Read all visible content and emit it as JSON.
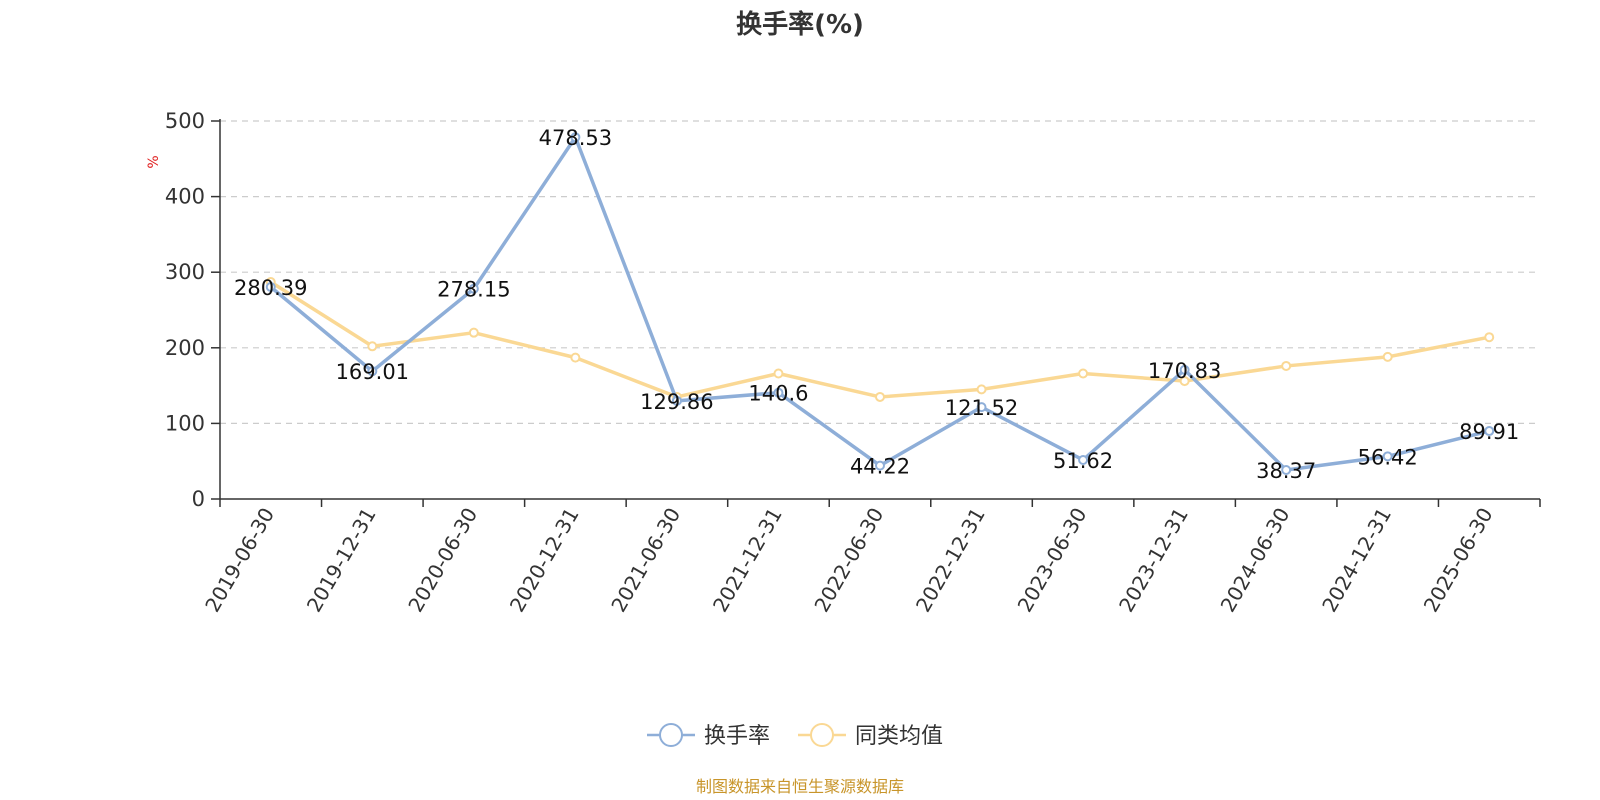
{
  "chart_data": {
    "type": "line",
    "title": "换手率(%)",
    "ylabel": "%",
    "ylim": [
      0,
      500
    ],
    "yticks": [
      0,
      100,
      200,
      300,
      400,
      500
    ],
    "grid": true,
    "legend_position": "bottom",
    "categories": [
      "2019-06-30",
      "2019-12-31",
      "2020-06-30",
      "2020-12-31",
      "2021-06-30",
      "2021-12-31",
      "2022-06-30",
      "2022-12-31",
      "2023-06-30",
      "2023-12-31",
      "2024-06-30",
      "2024-12-31",
      "2025-06-30"
    ],
    "series": [
      {
        "name": "换手率",
        "color": "#8eaed8",
        "values": [
          280.39,
          169.01,
          278.15,
          478.53,
          129.86,
          140.6,
          44.22,
          121.52,
          51.62,
          170.83,
          38.37,
          56.42,
          89.91
        ],
        "labels": [
          "280.39",
          "169.01",
          "278.15",
          "478.53",
          "129.86",
          "140.6",
          "44.22",
          "121.52",
          "51.62",
          "170.83",
          "38.37",
          "56.42",
          "89.91"
        ]
      },
      {
        "name": "同类均值",
        "color": "#fad894",
        "values": [
          287,
          202,
          220,
          187,
          135,
          166,
          135,
          145,
          166,
          156,
          176,
          188,
          214
        ]
      }
    ],
    "unit_color": "#e02020"
  },
  "footer": {
    "source": "制图数据来自恒生聚源数据库",
    "color": "#c8952a"
  }
}
